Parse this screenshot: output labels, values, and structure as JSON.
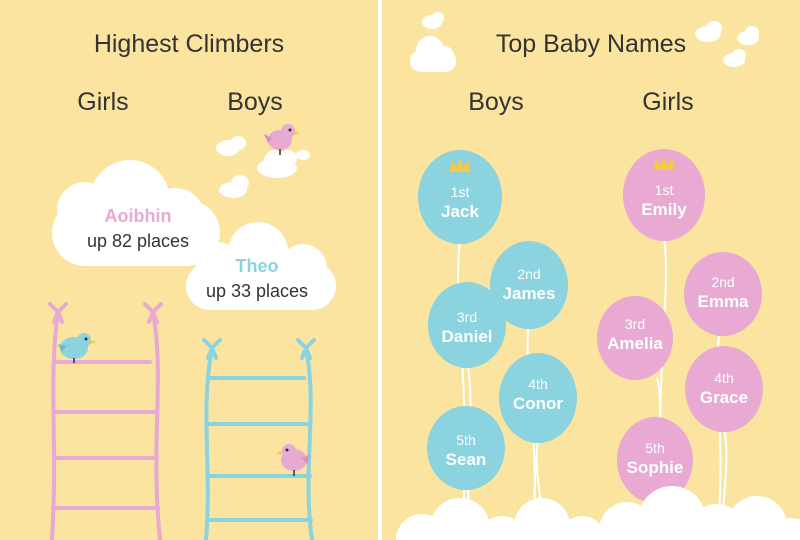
{
  "colors": {
    "background": "#fbe3a0",
    "pink": "#e8a9d3",
    "blue": "#8ad3df",
    "cloud": "#ffffff",
    "crown": "#f3c84a",
    "text": "#333333"
  },
  "left": {
    "title": "Highest Climbers",
    "girls_label": "Girls",
    "boys_label": "Boys",
    "girl": {
      "name": "Aoibhin",
      "detail": "up 82 places"
    },
    "boy": {
      "name": "Theo",
      "detail": "up 33 places"
    }
  },
  "right": {
    "title": "Top Baby Names",
    "boys_label": "Boys",
    "girls_label": "Girls",
    "boys": [
      {
        "rank": "1st",
        "name": "Jack"
      },
      {
        "rank": "2nd",
        "name": "James"
      },
      {
        "rank": "3rd",
        "name": "Daniel"
      },
      {
        "rank": "4th",
        "name": "Conor"
      },
      {
        "rank": "5th",
        "name": "Sean"
      }
    ],
    "girls": [
      {
        "rank": "1st",
        "name": "Emily"
      },
      {
        "rank": "2nd",
        "name": "Emma"
      },
      {
        "rank": "3rd",
        "name": "Amelia"
      },
      {
        "rank": "4th",
        "name": "Grace"
      },
      {
        "rank": "5th",
        "name": "Sophie"
      }
    ]
  }
}
